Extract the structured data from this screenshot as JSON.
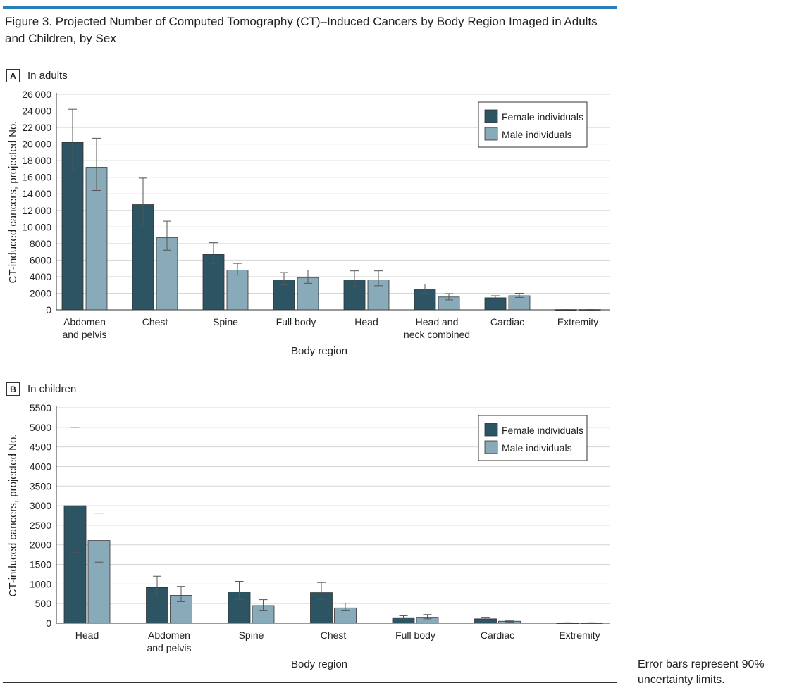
{
  "figure": {
    "title": "Figure 3. Projected Number of Computed Tomography (CT)–Induced Cancers by Body Region Imaged in Adults and Children, by Sex",
    "note": "Error bars represent 90% uncertainty limits."
  },
  "colors": {
    "female": "#2c5463",
    "male": "#89abb9",
    "accent": "#2b7fb8"
  },
  "panels": [
    {
      "letter": "A",
      "label": "In adults"
    },
    {
      "letter": "B",
      "label": "In children"
    }
  ],
  "chart_data": [
    {
      "type": "bar",
      "title": "In adults",
      "xlabel": "Body region",
      "ylabel": "CT-induced cancers, projected No.",
      "ylim": [
        0,
        26000
      ],
      "yticks": [
        0,
        2000,
        4000,
        6000,
        8000,
        10000,
        12000,
        14000,
        16000,
        18000,
        20000,
        22000,
        24000,
        26000
      ],
      "grid": true,
      "legend_position": "top-right",
      "categories": [
        "Abdomen\nand pelvis",
        "Chest",
        "Spine",
        "Full body",
        "Head",
        "Head and\nneck combined",
        "Cardiac",
        "Extremity"
      ],
      "series": [
        {
          "name": "Female individuals",
          "values": [
            20200,
            12700,
            6700,
            3600,
            3600,
            2500,
            1450,
            30
          ],
          "lower": [
            16900,
            10200,
            5600,
            3000,
            2800,
            2000,
            1300,
            20
          ],
          "upper": [
            24200,
            15900,
            8100,
            4500,
            4700,
            3100,
            1700,
            40
          ]
        },
        {
          "name": "Male individuals",
          "values": [
            17200,
            8700,
            4800,
            3900,
            3600,
            1550,
            1700,
            30
          ],
          "lower": [
            14400,
            7200,
            4200,
            3200,
            2900,
            1200,
            1500,
            20
          ],
          "upper": [
            20700,
            10700,
            5600,
            4800,
            4700,
            1950,
            2000,
            40
          ]
        }
      ]
    },
    {
      "type": "bar",
      "title": "In children",
      "xlabel": "Body region",
      "ylabel": "CT-induced cancers, projected No.",
      "ylim": [
        0,
        5500
      ],
      "yticks": [
        0,
        500,
        1000,
        1500,
        2000,
        2500,
        3000,
        3500,
        4000,
        4500,
        5000,
        5500
      ],
      "grid": true,
      "legend_position": "top-right",
      "categories": [
        "Head",
        "Abdomen\nand pelvis",
        "Spine",
        "Chest",
        "Full body",
        "Cardiac",
        "Extremity"
      ],
      "series": [
        {
          "name": "Female individuals",
          "values": [
            3000,
            910,
            800,
            780,
            140,
            110,
            8
          ],
          "lower": [
            1800,
            690,
            600,
            600,
            110,
            80,
            5
          ],
          "upper": [
            5000,
            1200,
            1070,
            1040,
            190,
            150,
            12
          ]
        },
        {
          "name": "Male individuals",
          "values": [
            2110,
            710,
            450,
            390,
            150,
            50,
            8
          ],
          "lower": [
            1560,
            550,
            330,
            330,
            110,
            30,
            5
          ],
          "upper": [
            2810,
            940,
            600,
            510,
            220,
            70,
            12
          ]
        }
      ]
    }
  ]
}
